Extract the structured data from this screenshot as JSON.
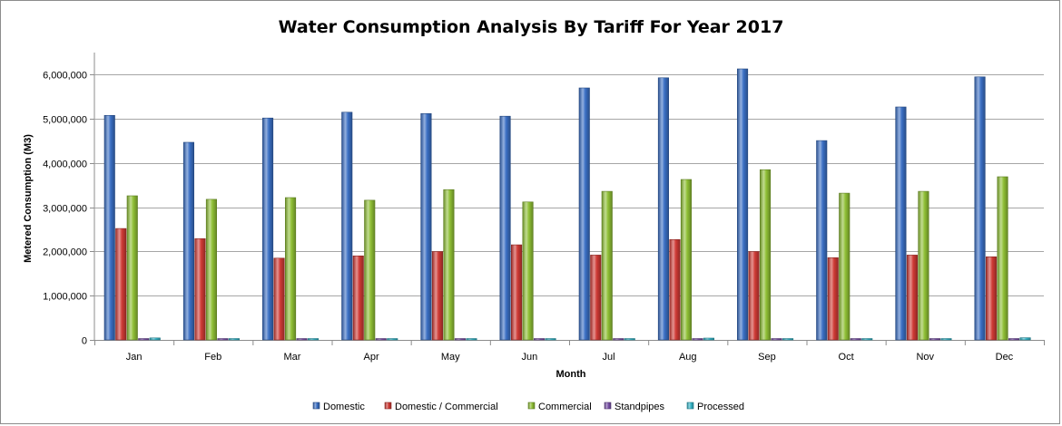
{
  "chart_data": {
    "type": "bar",
    "title": "Water Consumption  Analysis By Tariff For Year 2017",
    "xlabel": "Month",
    "ylabel": "Metered Consumption (M3)",
    "ylim": [
      0,
      6500000
    ],
    "yticks": [
      0,
      1000000,
      2000000,
      3000000,
      4000000,
      5000000,
      6000000
    ],
    "ytick_labels": [
      "0",
      "1,000,000",
      "2,000,000",
      "3,000,000",
      "4,000,000",
      "5,000,000",
      "6,000,000"
    ],
    "grid": true,
    "legend_position": "bottom",
    "categories": [
      "Jan",
      "Feb",
      "Mar",
      "Apr",
      "May",
      "Jun",
      "Jul",
      "Aug",
      "Sep",
      "Oct",
      "Nov",
      "Dec"
    ],
    "series": [
      {
        "name": "Domestic",
        "color": "#3a6fc4",
        "values": [
          5080000,
          4470000,
          5020000,
          5150000,
          5120000,
          5060000,
          5700000,
          5930000,
          6130000,
          4510000,
          5270000,
          5950000
        ]
      },
      {
        "name": "Domestic / Commercial",
        "color": "#cf3a35",
        "values": [
          2520000,
          2290000,
          1850000,
          1900000,
          2000000,
          2150000,
          1920000,
          2270000,
          2000000,
          1860000,
          1920000,
          1880000
        ]
      },
      {
        "name": "Commercial",
        "color": "#8fbf35",
        "values": [
          3260000,
          3180000,
          3220000,
          3160000,
          3400000,
          3120000,
          3360000,
          3630000,
          3850000,
          3320000,
          3360000,
          3690000
        ]
      },
      {
        "name": "Standpipes",
        "color": "#7a52a8",
        "values": [
          20000,
          18000,
          18000,
          18000,
          18000,
          18000,
          18000,
          18000,
          18000,
          18000,
          18000,
          18000
        ]
      },
      {
        "name": "Processed",
        "color": "#35b5c8",
        "values": [
          45000,
          30000,
          30000,
          30000,
          30000,
          30000,
          30000,
          40000,
          25000,
          30000,
          30000,
          50000
        ]
      }
    ]
  }
}
